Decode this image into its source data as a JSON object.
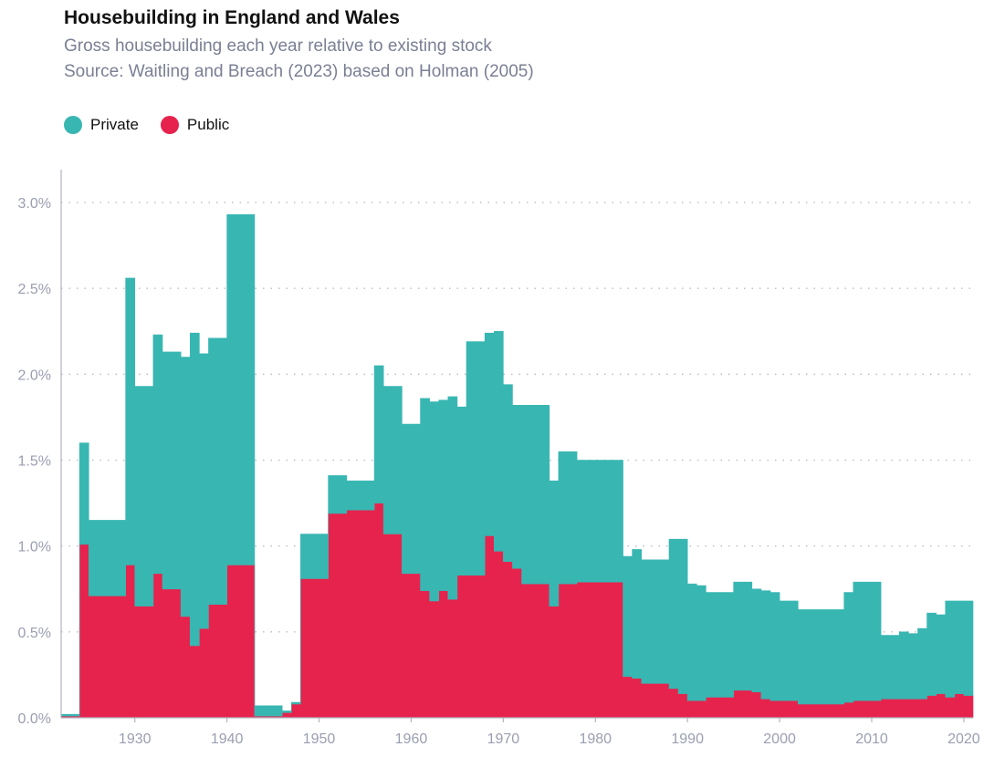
{
  "title": "Housebuilding in England and Wales",
  "subtitle": "Gross housebuilding each year relative to existing stock",
  "source": "Source: Waitling and Breach (2023) based on Holman (2005)",
  "legend": [
    {
      "label": "Private",
      "color": "#38b6b2"
    },
    {
      "label": "Public",
      "color": "#e6234d"
    }
  ],
  "chart_data": {
    "type": "area",
    "stacked": true,
    "step": true,
    "xlim": [
      1922,
      2021
    ],
    "ylim": [
      0,
      0.0325
    ],
    "x_ticks": [
      1930,
      1940,
      1950,
      1960,
      1970,
      1980,
      1990,
      2000,
      2010,
      2020
    ],
    "y_ticks": [
      {
        "value": 0,
        "label": "0.0%"
      },
      {
        "value": 0.005,
        "label": "0.5%"
      },
      {
        "value": 0.01,
        "label": "1.0%"
      },
      {
        "value": 0.015,
        "label": "1.5%"
      },
      {
        "value": 0.02,
        "label": "2.0%"
      },
      {
        "value": 0.025,
        "label": "2.5%"
      },
      {
        "value": 0.03,
        "label": "3.0%"
      }
    ],
    "grid": true,
    "legend_position": "top-left",
    "x": [
      1922,
      1923,
      1924,
      1925,
      1926,
      1927,
      1928,
      1929,
      1930,
      1931,
      1932,
      1933,
      1934,
      1935,
      1936,
      1937,
      1938,
      1939,
      1940,
      1941,
      1942,
      1943,
      1944,
      1945,
      1946,
      1947,
      1948,
      1949,
      1950,
      1951,
      1952,
      1953,
      1954,
      1955,
      1956,
      1957,
      1958,
      1959,
      1960,
      1961,
      1962,
      1963,
      1964,
      1965,
      1966,
      1967,
      1968,
      1969,
      1970,
      1971,
      1972,
      1973,
      1974,
      1975,
      1976,
      1977,
      1978,
      1979,
      1980,
      1981,
      1982,
      1983,
      1984,
      1985,
      1986,
      1987,
      1988,
      1989,
      1990,
      1991,
      1992,
      1993,
      1994,
      1995,
      1996,
      1997,
      1998,
      1999,
      2000,
      2001,
      2002,
      2003,
      2004,
      2005,
      2006,
      2007,
      2008,
      2009,
      2010,
      2011,
      2012,
      2013,
      2014,
      2015,
      2016,
      2017,
      2018,
      2019,
      2020
    ],
    "series": [
      {
        "name": "Public",
        "color": "#e6234d",
        "values": [
          0.0001,
          0.0001,
          0.0101,
          0.0071,
          0.0071,
          0.0071,
          0.0071,
          0.0089,
          0.0065,
          0.0065,
          0.0084,
          0.0075,
          0.0075,
          0.0059,
          0.0042,
          0.0052,
          0.0066,
          0.0066,
          0.0089,
          0.0089,
          0.0089,
          0.0001,
          0.0001,
          0.0001,
          0.0003,
          0.0008,
          0.0081,
          0.0081,
          0.0081,
          0.0119,
          0.0119,
          0.0121,
          0.0121,
          0.0121,
          0.0125,
          0.0107,
          0.0107,
          0.0084,
          0.0084,
          0.0074,
          0.0068,
          0.0074,
          0.0069,
          0.0083,
          0.0083,
          0.0083,
          0.0106,
          0.0097,
          0.0091,
          0.0087,
          0.0078,
          0.0078,
          0.0078,
          0.0065,
          0.0078,
          0.0078,
          0.0079,
          0.0079,
          0.0079,
          0.0079,
          0.0079,
          0.0024,
          0.0023,
          0.002,
          0.002,
          0.002,
          0.0017,
          0.0014,
          0.001,
          0.001,
          0.0012,
          0.0012,
          0.0012,
          0.0016,
          0.0016,
          0.0015,
          0.0011,
          0.001,
          0.001,
          0.001,
          0.0008,
          0.0008,
          0.0008,
          0.0008,
          0.0008,
          0.0009,
          0.001,
          0.001,
          0.001,
          0.0011,
          0.0011,
          0.0011,
          0.0011,
          0.0011,
          0.0013,
          0.0014,
          0.0012,
          0.0014,
          0.0013
        ]
      },
      {
        "name": "Private",
        "color": "#38b6b2",
        "values": [
          0.0001,
          0.0001,
          0.0059,
          0.0044,
          0.0044,
          0.0044,
          0.0044,
          0.0167,
          0.0128,
          0.0128,
          0.0139,
          0.0138,
          0.0138,
          0.0151,
          0.0182,
          0.016,
          0.0155,
          0.0155,
          0.0204,
          0.0204,
          0.0204,
          0.0006,
          0.0006,
          0.0006,
          0.0001,
          0.0001,
          0.0026,
          0.0026,
          0.0026,
          0.0022,
          0.0022,
          0.0017,
          0.0017,
          0.0017,
          0.008,
          0.0086,
          0.0086,
          0.0087,
          0.0087,
          0.0112,
          0.0116,
          0.0111,
          0.0118,
          0.0098,
          0.0136,
          0.0136,
          0.0118,
          0.0128,
          0.0103,
          0.0095,
          0.0104,
          0.0104,
          0.0104,
          0.0073,
          0.0077,
          0.0077,
          0.0071,
          0.0071,
          0.0071,
          0.0071,
          0.0071,
          0.007,
          0.0075,
          0.0072,
          0.0072,
          0.0072,
          0.0087,
          0.009,
          0.0068,
          0.0067,
          0.0061,
          0.0061,
          0.0061,
          0.0063,
          0.0063,
          0.006,
          0.0063,
          0.0063,
          0.0058,
          0.0058,
          0.0055,
          0.0055,
          0.0055,
          0.0055,
          0.0055,
          0.0064,
          0.0069,
          0.0069,
          0.0069,
          0.0037,
          0.0037,
          0.0039,
          0.0038,
          0.0041,
          0.0048,
          0.0046,
          0.0056,
          0.0054,
          0.0055
        ]
      }
    ]
  }
}
